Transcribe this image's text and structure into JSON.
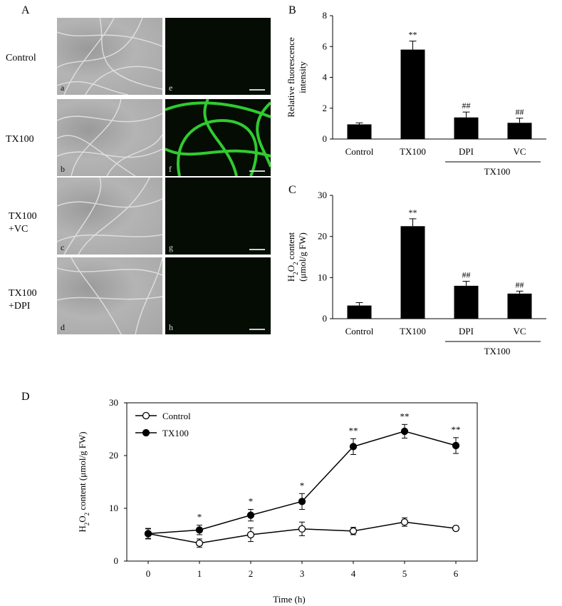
{
  "panels": {
    "A": {
      "letter": "A",
      "rows": [
        "Control",
        "TX100",
        "TX100\n+VC",
        "TX100\n+DPI"
      ],
      "bf_tags": [
        "a",
        "b",
        "c",
        "d"
      ],
      "fl_tags": [
        "e",
        "f",
        "g",
        "h"
      ]
    },
    "B": {
      "letter": "B"
    },
    "C": {
      "letter": "C"
    },
    "D": {
      "letter": "D"
    }
  },
  "chart_data": [
    {
      "id": "B",
      "type": "bar",
      "categories": [
        "Control",
        "TX100",
        "DPI",
        "VC"
      ],
      "group_label": "TX100",
      "values": [
        0.95,
        5.8,
        1.4,
        1.05
      ],
      "errors": [
        0.1,
        0.55,
        0.35,
        0.3
      ],
      "annotations": [
        "",
        "**",
        "##",
        "##"
      ],
      "ylabel": "Relative fluorescence\nintensity",
      "ylim": [
        0,
        8
      ],
      "yticks": [
        0,
        2,
        4,
        6,
        8
      ],
      "color": "#000000"
    },
    {
      "id": "C",
      "type": "bar",
      "categories": [
        "Control",
        "TX100",
        "DPI",
        "VC"
      ],
      "group_label": "TX100",
      "values": [
        3.2,
        22.5,
        8.0,
        6.1
      ],
      "errors": [
        0.7,
        1.8,
        1.1,
        0.6
      ],
      "annotations": [
        "",
        "**",
        "##",
        "##"
      ],
      "ylabel": "H2O2 content\n(μmol/g FW)",
      "ylim": [
        0,
        30
      ],
      "yticks": [
        0,
        10,
        20,
        30
      ],
      "color": "#000000"
    },
    {
      "id": "D",
      "type": "line",
      "x": [
        0,
        1,
        2,
        3,
        4,
        5,
        6
      ],
      "xlabel": "Time (h)",
      "ylabel": "H2O2 content (μmol/g FW)",
      "xlim": [
        0,
        6
      ],
      "ylim": [
        0,
        30
      ],
      "yticks": [
        0,
        10,
        20,
        30
      ],
      "legend_position": "top-left",
      "series": [
        {
          "name": "Control",
          "marker": "open-circle",
          "values": [
            5.2,
            3.4,
            5.0,
            6.1,
            5.7,
            7.4,
            6.2
          ],
          "errors": [
            0.9,
            0.8,
            1.3,
            1.3,
            0.7,
            0.8,
            0.4
          ]
        },
        {
          "name": "TX100",
          "marker": "filled-circle",
          "values": [
            5.2,
            5.9,
            8.7,
            11.3,
            21.7,
            24.6,
            21.9
          ],
          "errors": [
            1.0,
            0.9,
            1.1,
            1.5,
            1.5,
            1.3,
            1.5
          ]
        }
      ],
      "annotations": [
        "",
        "*",
        "*",
        "*",
        "**",
        "**",
        "**"
      ]
    }
  ]
}
